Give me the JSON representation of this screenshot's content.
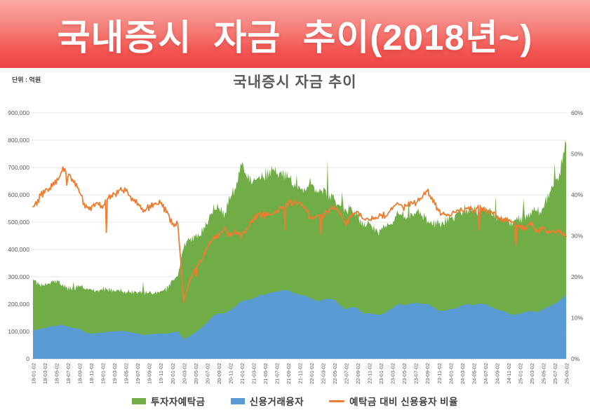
{
  "banner": {
    "title": "국내증시 자금 추이(2018년~)"
  },
  "chart": {
    "title": "국내증시 자금 추이",
    "unit_label": "단위 : 억원",
    "legend": [
      {
        "label": "투자자예탁금",
        "color": "#70AD47",
        "marker": "rect"
      },
      {
        "label": "신용거래융자",
        "color": "#5B9BD5",
        "marker": "rect"
      },
      {
        "label": "예탁금 대비 신용융자 비율",
        "color": "#ED7D31",
        "marker": "line"
      }
    ]
  },
  "colors": {
    "banner_top": "#f9aaa6",
    "banner_bottom": "#ee4644",
    "deposits_green": "#70AD47",
    "credit_blue": "#5B9BD5",
    "ratio_orange": "#ED7D31",
    "gridline": "#e4e4e4",
    "axis_text": "#595959",
    "title_text": "#595959"
  },
  "chart_data": {
    "type": "area",
    "title": "국내증시 자금 추이",
    "unit": "억원",
    "legend_position": "bottom",
    "grid": "horizontal-only",
    "left_axis": {
      "range": [
        0,
        900000
      ],
      "ticks": [
        "0",
        "100,000",
        "200,000",
        "300,000",
        "400,000",
        "500,000",
        "600,000",
        "700,000",
        "800,000",
        "900,000"
      ]
    },
    "right_axis": {
      "range_pct": [
        0,
        60
      ],
      "ticks": [
        "0%",
        "10%",
        "20%",
        "30%",
        "40%",
        "50%",
        "60%"
      ]
    },
    "x_tick_labels": [
      "18-01-02",
      "18-03-02",
      "18-05-02",
      "18-07-02",
      "18-09-02",
      "18-11-02",
      "19-01-02",
      "19-03-02",
      "19-05-02",
      "19-07-02",
      "19-09-02",
      "19-11-02",
      "20-01-02",
      "20-03-02",
      "20-05-02",
      "20-07-02",
      "20-09-02",
      "20-11-02",
      "21-01-02",
      "21-03-02",
      "21-05-02",
      "21-07-02",
      "21-09-02",
      "21-11-02",
      "22-01-02",
      "22-03-02",
      "22-05-02",
      "22-07-02",
      "22-09-02",
      "22-11-02",
      "23-01-02",
      "23-03-02",
      "23-05-02",
      "23-07-02",
      "23-09-02",
      "23-11-02",
      "24-01-02",
      "24-03-02",
      "24-05-02",
      "24-07-02",
      "24-09-02",
      "24-11-02",
      "25-01-02",
      "25-03-02",
      "25-05-02",
      "25-07-02",
      "25-09-02"
    ],
    "months": [
      "2018-01",
      "2018-02",
      "2018-03",
      "2018-04",
      "2018-05",
      "2018-06",
      "2018-07",
      "2018-08",
      "2018-09",
      "2018-10",
      "2018-11",
      "2018-12",
      "2019-01",
      "2019-02",
      "2019-03",
      "2019-04",
      "2019-05",
      "2019-06",
      "2019-07",
      "2019-08",
      "2019-09",
      "2019-10",
      "2019-11",
      "2019-12",
      "2020-01",
      "2020-02",
      "2020-03",
      "2020-04",
      "2020-05",
      "2020-06",
      "2020-07",
      "2020-08",
      "2020-09",
      "2020-10",
      "2020-11",
      "2020-12",
      "2021-01",
      "2021-02",
      "2021-03",
      "2021-04",
      "2021-05",
      "2021-06",
      "2021-07",
      "2021-08",
      "2021-09",
      "2021-10",
      "2021-11",
      "2021-12",
      "2022-01",
      "2022-02",
      "2022-03",
      "2022-04",
      "2022-05",
      "2022-06",
      "2022-07",
      "2022-08",
      "2022-09",
      "2022-10",
      "2022-11",
      "2022-12",
      "2023-01",
      "2023-02",
      "2023-03",
      "2023-04",
      "2023-05",
      "2023-06",
      "2023-07",
      "2023-08",
      "2023-09",
      "2023-10",
      "2023-11",
      "2023-12",
      "2024-01",
      "2024-02",
      "2024-03",
      "2024-04",
      "2024-05",
      "2024-06",
      "2024-07",
      "2024-08",
      "2024-09",
      "2024-10",
      "2024-11",
      "2024-12",
      "2025-01",
      "2025-02",
      "2025-03",
      "2025-04",
      "2025-05",
      "2025-06",
      "2025-07",
      "2025-08",
      "2025-09"
    ],
    "series": [
      {
        "name": "투자자예탁금",
        "type": "area",
        "axis": "left",
        "color": "#70AD47",
        "values": [
          290000,
          272000,
          275000,
          282000,
          283000,
          270000,
          258000,
          255000,
          268000,
          258000,
          252000,
          250000,
          256000,
          252000,
          250000,
          252000,
          246000,
          244000,
          246000,
          240000,
          242000,
          240000,
          246000,
          254000,
          288000,
          310000,
          410000,
          438000,
          442000,
          462000,
          486000,
          546000,
          556000,
          524000,
          586000,
          625000,
          715000,
          665000,
          645000,
          665000,
          672000,
          682000,
          685000,
          672000,
          662000,
          632000,
          622000,
          622000,
          645000,
          605000,
          625000,
          605000,
          582000,
          562000,
          545000,
          545000,
          522000,
          492000,
          492000,
          472000,
          462000,
          492000,
          502000,
          532000,
          522000,
          522000,
          542000,
          522000,
          512000,
          492000,
          492000,
          502000,
          512000,
          522000,
          542000,
          552000,
          542000,
          542000,
          552000,
          532000,
          522000,
          512000,
          502000,
          502000,
          512000,
          522000,
          532000,
          542000,
          552000,
          602000,
          642000,
          692000,
          800000
        ]
      },
      {
        "name": "신용거래융자",
        "type": "area",
        "axis": "left",
        "color": "#5B9BD5",
        "values": [
          105000,
          108000,
          112000,
          118000,
          121000,
          125000,
          118000,
          113000,
          110000,
          96000,
          93000,
          94000,
          96000,
          99000,
          101000,
          103000,
          101000,
          96000,
          93000,
          87000,
          89000,
          91000,
          93000,
          92000,
          96000,
          101000,
          72000,
          82000,
          96000,
          112000,
          132000,
          156000,
          166000,
          166000,
          176000,
          192000,
          212000,
          216000,
          221000,
          231000,
          236000,
          241000,
          246000,
          251000,
          250000,
          241000,
          236000,
          231000,
          221000,
          211000,
          216000,
          221000,
          216000,
          196000,
          181000,
          191000,
          186000,
          166000,
          166000,
          161000,
          161000,
          171000,
          186000,
          201000,
          196000,
          201000,
          206000,
          201000,
          201000,
          191000,
          176000,
          176000,
          181000,
          186000,
          196000,
          201000,
          196000,
          201000,
          201000,
          191000,
          181000,
          176000,
          166000,
          161000,
          166000,
          171000,
          176000,
          171000,
          181000,
          191000,
          201000,
          216000,
          235000
        ]
      },
      {
        "name": "예탁금 대비 신용융자 비율",
        "type": "line",
        "axis": "right",
        "unit": "%",
        "color": "#ED7D31",
        "values": [
          37,
          39,
          41,
          42,
          43,
          46,
          45,
          44,
          41,
          37,
          37,
          38,
          37,
          39,
          40,
          41,
          41,
          39,
          38,
          36,
          37,
          38,
          38,
          36,
          33,
          33,
          14,
          19,
          22,
          24,
          27,
          29,
          30,
          32,
          30,
          31,
          30,
          32,
          34,
          35,
          35,
          35,
          36,
          37,
          38,
          38,
          38,
          37,
          34,
          35,
          35,
          36,
          37,
          35,
          33,
          35,
          36,
          34,
          34,
          34,
          35,
          35,
          37,
          38,
          37,
          38,
          38,
          39,
          41,
          39,
          36,
          35,
          35,
          36,
          36,
          37,
          36,
          37,
          36,
          36,
          35,
          34,
          34,
          33,
          32,
          32,
          33,
          31,
          32,
          31,
          31,
          31,
          30
        ]
      }
    ]
  }
}
